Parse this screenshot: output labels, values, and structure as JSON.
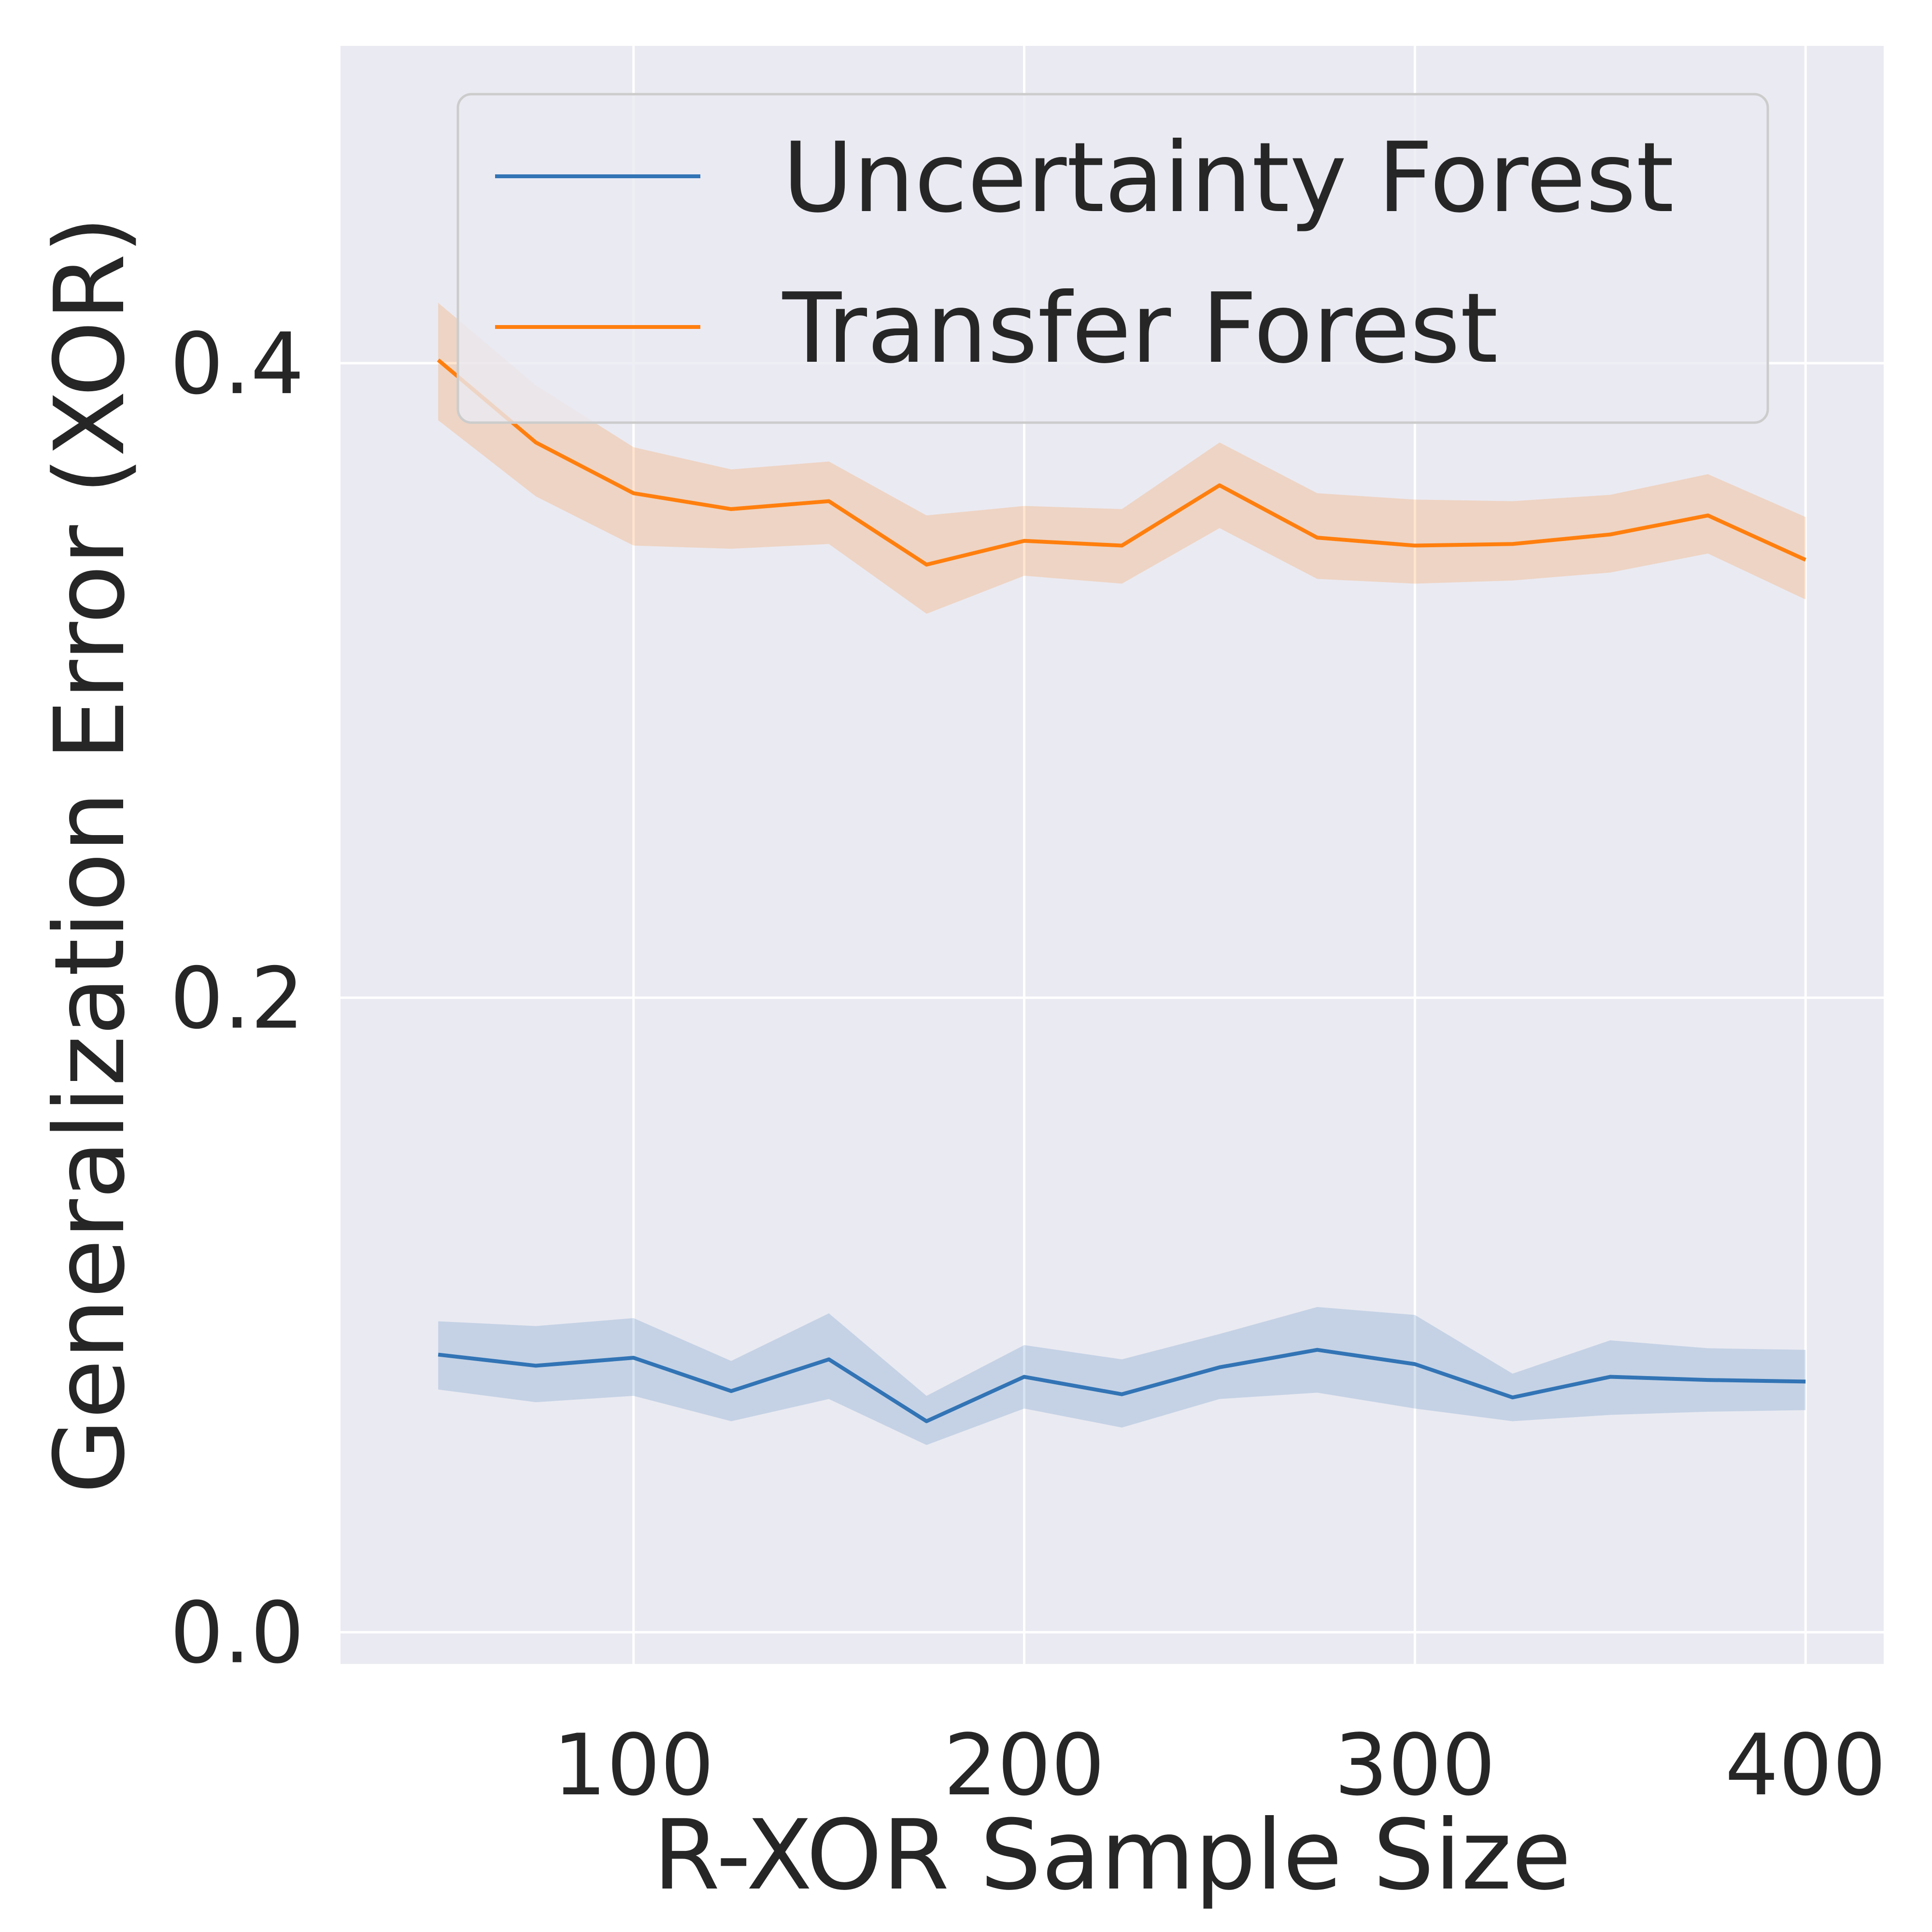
{
  "chart_data": {
    "type": "line",
    "xlabel": "R-XOR Sample Size",
    "ylabel": "Generalization Error (XOR)",
    "xlim": [
      25,
      420
    ],
    "ylim": [
      -0.01,
      0.5
    ],
    "x_ticks": [
      100,
      200,
      300,
      400
    ],
    "x_tick_labels": [
      "100",
      "200",
      "300",
      "400"
    ],
    "y_ticks": [
      0.0,
      0.2,
      0.4
    ],
    "y_tick_labels": [
      "0.0",
      "0.2",
      "0.4"
    ],
    "grid": true,
    "legend_position": "upper-right",
    "x": [
      50,
      75,
      100,
      125,
      150,
      175,
      200,
      225,
      250,
      275,
      300,
      325,
      350,
      375,
      400
    ],
    "series": [
      {
        "name": "Uncertainty Forest",
        "color": "#3274b5",
        "values": [
          0.0875,
          0.084,
          0.0865,
          0.076,
          0.086,
          0.0665,
          0.0805,
          0.075,
          0.0835,
          0.089,
          0.0845,
          0.074,
          0.0805,
          0.0795,
          0.079
        ],
        "lower": [
          0.0765,
          0.0725,
          0.0745,
          0.0665,
          0.0735,
          0.059,
          0.0705,
          0.0645,
          0.0735,
          0.0755,
          0.0705,
          0.0665,
          0.0685,
          0.0695,
          0.07
        ],
        "upper": [
          0.098,
          0.0965,
          0.099,
          0.0855,
          0.1005,
          0.0745,
          0.0905,
          0.086,
          0.094,
          0.1025,
          0.1,
          0.0815,
          0.092,
          0.0895,
          0.089
        ]
      },
      {
        "name": "Transfer Forest",
        "color": "#ff7f0e",
        "values": [
          0.401,
          0.375,
          0.359,
          0.354,
          0.3565,
          0.3365,
          0.344,
          0.3425,
          0.3615,
          0.345,
          0.3425,
          0.343,
          0.346,
          0.352,
          0.338
        ],
        "lower": [
          0.382,
          0.358,
          0.3425,
          0.3415,
          0.343,
          0.321,
          0.333,
          0.3305,
          0.348,
          0.332,
          0.3305,
          0.3315,
          0.334,
          0.34,
          0.3255
        ],
        "upper": [
          0.419,
          0.393,
          0.3735,
          0.3665,
          0.369,
          0.352,
          0.355,
          0.354,
          0.375,
          0.359,
          0.357,
          0.3565,
          0.3585,
          0.365,
          0.3515
        ]
      }
    ]
  }
}
